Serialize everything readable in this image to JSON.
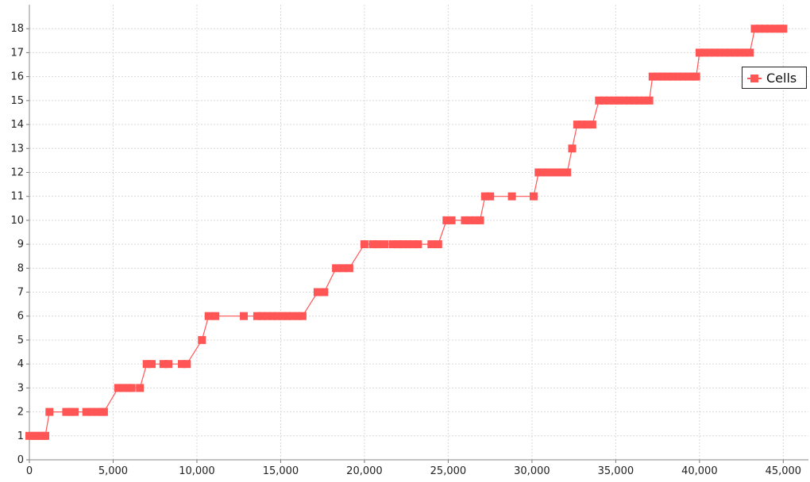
{
  "chart_data": {
    "type": "line",
    "title": "",
    "xlabel": "",
    "ylabel": "",
    "xlim": [
      0,
      46500
    ],
    "ylim": [
      0,
      19
    ],
    "x_ticks": [
      "0",
      "5,000",
      "10,000",
      "15,000",
      "20,000",
      "25,000",
      "30,000",
      "35,000",
      "40,000",
      "45,000"
    ],
    "y_ticks": [
      "0",
      "1",
      "2",
      "3",
      "4",
      "5",
      "6",
      "7",
      "8",
      "9",
      "10",
      "11",
      "12",
      "13",
      "14",
      "15",
      "16",
      "17",
      "18"
    ],
    "grid": true,
    "legend_position": "right",
    "series": [
      {
        "name": "Cells",
        "color": "#ff5555",
        "marker": "square",
        "points": [
          [
            0,
            1
          ],
          [
            200,
            1
          ],
          [
            400,
            1
          ],
          [
            600,
            1
          ],
          [
            800,
            1
          ],
          [
            950,
            1
          ],
          [
            1200,
            2
          ],
          [
            2200,
            2
          ],
          [
            2450,
            2
          ],
          [
            2700,
            2
          ],
          [
            3400,
            2
          ],
          [
            3700,
            2
          ],
          [
            4000,
            2
          ],
          [
            4300,
            2
          ],
          [
            4450,
            2
          ],
          [
            5300,
            3
          ],
          [
            5600,
            3
          ],
          [
            5900,
            3
          ],
          [
            6100,
            3
          ],
          [
            6600,
            3
          ],
          [
            7000,
            4
          ],
          [
            7300,
            4
          ],
          [
            8000,
            4
          ],
          [
            8300,
            4
          ],
          [
            9100,
            4
          ],
          [
            9400,
            4
          ],
          [
            10300,
            5
          ],
          [
            10700,
            6
          ],
          [
            11100,
            6
          ],
          [
            12800,
            6
          ],
          [
            13600,
            6
          ],
          [
            13900,
            6
          ],
          [
            14200,
            6
          ],
          [
            14500,
            6
          ],
          [
            14800,
            6
          ],
          [
            15100,
            6
          ],
          [
            15400,
            6
          ],
          [
            15700,
            6
          ],
          [
            16000,
            6
          ],
          [
            16300,
            6
          ],
          [
            17200,
            7
          ],
          [
            17600,
            7
          ],
          [
            18300,
            8
          ],
          [
            18700,
            8
          ],
          [
            19100,
            8
          ],
          [
            20000,
            9
          ],
          [
            20500,
            9
          ],
          [
            20800,
            9
          ],
          [
            21200,
            9
          ],
          [
            21700,
            9
          ],
          [
            22000,
            9
          ],
          [
            22300,
            9
          ],
          [
            22600,
            9
          ],
          [
            22900,
            9
          ],
          [
            23200,
            9
          ],
          [
            24000,
            9
          ],
          [
            24400,
            9
          ],
          [
            24900,
            10
          ],
          [
            25200,
            10
          ],
          [
            26000,
            10
          ],
          [
            26300,
            10
          ],
          [
            26600,
            10
          ],
          [
            26900,
            10
          ],
          [
            27200,
            11
          ],
          [
            27500,
            11
          ],
          [
            28800,
            11
          ],
          [
            30100,
            11
          ],
          [
            30400,
            12
          ],
          [
            30700,
            12
          ],
          [
            31000,
            12
          ],
          [
            31300,
            12
          ],
          [
            31600,
            12
          ],
          [
            31900,
            12
          ],
          [
            32100,
            12
          ],
          [
            32400,
            13
          ],
          [
            32700,
            14
          ],
          [
            33000,
            14
          ],
          [
            33300,
            14
          ],
          [
            33600,
            14
          ],
          [
            34000,
            15
          ],
          [
            34300,
            15
          ],
          [
            34600,
            15
          ],
          [
            34900,
            15
          ],
          [
            35200,
            15
          ],
          [
            35500,
            15
          ],
          [
            35800,
            15
          ],
          [
            36100,
            15
          ],
          [
            36400,
            15
          ],
          [
            36700,
            15
          ],
          [
            37000,
            15
          ],
          [
            37200,
            16
          ],
          [
            37500,
            16
          ],
          [
            37800,
            16
          ],
          [
            38100,
            16
          ],
          [
            38400,
            16
          ],
          [
            38700,
            16
          ],
          [
            39000,
            16
          ],
          [
            39300,
            16
          ],
          [
            39600,
            16
          ],
          [
            39800,
            16
          ],
          [
            40000,
            17
          ],
          [
            40300,
            17
          ],
          [
            40600,
            17
          ],
          [
            40900,
            17
          ],
          [
            41200,
            17
          ],
          [
            41500,
            17
          ],
          [
            41800,
            17
          ],
          [
            42100,
            17
          ],
          [
            42400,
            17
          ],
          [
            42700,
            17
          ],
          [
            43000,
            17
          ],
          [
            43300,
            18
          ],
          [
            43600,
            18
          ],
          [
            43900,
            18
          ],
          [
            44200,
            18
          ],
          [
            44500,
            18
          ],
          [
            44800,
            18
          ],
          [
            45000,
            18
          ]
        ]
      }
    ]
  }
}
